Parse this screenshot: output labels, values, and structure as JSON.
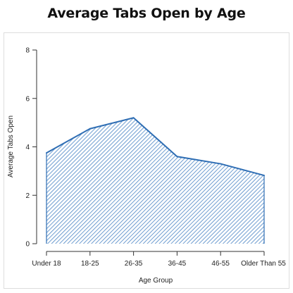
{
  "chart_data": {
    "type": "area",
    "title": "Average Tabs Open by Age",
    "xlabel": "Age Group",
    "ylabel": "Average Tabs Open",
    "categories": [
      "Under 18",
      "18-25",
      "26-35",
      "36-45",
      "46-55",
      "Older Than 55"
    ],
    "values": [
      3.75,
      4.75,
      5.2,
      3.6,
      3.3,
      2.82
    ],
    "ylim": [
      0,
      8
    ],
    "yticks": [
      0,
      2,
      4,
      6,
      8
    ],
    "grid": false,
    "legend": "none",
    "colors": {
      "line": "#2f6eb4",
      "hatch": "#4a84c4"
    }
  }
}
